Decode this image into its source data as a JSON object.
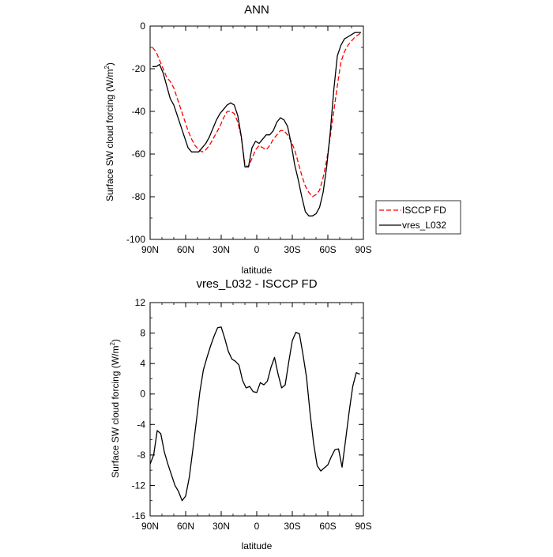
{
  "chart_data": [
    {
      "type": "line",
      "title": "ANN",
      "xlabel": "latitude",
      "ylabel_main": "Surface SW cloud forcing (W/m",
      "ylabel_sup": "2",
      "ylabel_end": ")",
      "xlim": [
        90,
        -90
      ],
      "ylim": [
        -100,
        0
      ],
      "xticks": [
        90,
        60,
        30,
        0,
        -30,
        -60,
        -90
      ],
      "xtick_labels": [
        "90N",
        "60N",
        "30N",
        "0",
        "30S",
        "60S",
        "90S"
      ],
      "yticks": [
        -100,
        -80,
        -60,
        -40,
        -20,
        0
      ],
      "ytick_labels": [
        "-100",
        "-80",
        "-60",
        "-40",
        "-20",
        "0"
      ],
      "legend_position": "right",
      "series": [
        {
          "name": "ISCCP FD",
          "color": "#ff0000",
          "dash": "dashed",
          "x": [
            88,
            85,
            82,
            79,
            76,
            73,
            70,
            67,
            64,
            61,
            58,
            55,
            52,
            49,
            46,
            43,
            40,
            37,
            34,
            31,
            28,
            25,
            22,
            19,
            16,
            13,
            10,
            7,
            4,
            1,
            -2,
            -5,
            -8,
            -11,
            -14,
            -17,
            -20,
            -23,
            -26,
            -29,
            -32,
            -35,
            -38,
            -41,
            -44,
            -47,
            -50,
            -53,
            -56,
            -59,
            -62,
            -65,
            -68,
            -71,
            -74,
            -77,
            -80,
            -83,
            -86,
            -88
          ],
          "y": [
            -10,
            -12,
            -16,
            -20,
            -24,
            -26,
            -29,
            -34,
            -39,
            -44,
            -49,
            -53,
            -56,
            -58,
            -59,
            -58,
            -56,
            -53,
            -50,
            -47,
            -43,
            -40,
            -40,
            -41,
            -45,
            -52,
            -65,
            -66,
            -62,
            -58,
            -56,
            -57,
            -58,
            -56,
            -53,
            -51,
            -49,
            -49,
            -51,
            -54,
            -58,
            -64,
            -70,
            -75,
            -78,
            -80,
            -79,
            -77,
            -71,
            -63,
            -52,
            -40,
            -28,
            -17,
            -12,
            -9,
            -7,
            -5,
            -4,
            -3
          ]
        },
        {
          "name": "vres_L032",
          "color": "#000000",
          "dash": "solid",
          "x": [
            88,
            85,
            82,
            79,
            76,
            73,
            70,
            67,
            64,
            61,
            58,
            55,
            52,
            49,
            46,
            43,
            40,
            37,
            34,
            31,
            28,
            25,
            22,
            19,
            16,
            13,
            10,
            7,
            4,
            1,
            -2,
            -5,
            -8,
            -11,
            -14,
            -17,
            -20,
            -23,
            -26,
            -29,
            -32,
            -35,
            -38,
            -41,
            -44,
            -47,
            -50,
            -53,
            -56,
            -59,
            -62,
            -65,
            -68,
            -71,
            -74,
            -77,
            -80,
            -83,
            -86,
            -88
          ],
          "y": [
            -19,
            -19,
            -18,
            -22,
            -28,
            -34,
            -37,
            -42,
            -47,
            -52,
            -57,
            -59,
            -59,
            -59,
            -57,
            -55,
            -52,
            -48,
            -44,
            -41,
            -39,
            -37,
            -36,
            -37,
            -42,
            -52,
            -66,
            -66,
            -57,
            -54,
            -55,
            -53,
            -51,
            -51,
            -49,
            -45,
            -43,
            -44,
            -47,
            -55,
            -65,
            -72,
            -80,
            -87,
            -89,
            -89,
            -88,
            -85,
            -78,
            -66,
            -50,
            -30,
            -14,
            -9,
            -6,
            -5,
            -4,
            -3,
            -3,
            -3
          ]
        }
      ]
    },
    {
      "type": "line",
      "title": "vres_L032 - ISCCP FD",
      "xlabel": "latitude",
      "ylabel_main": "Surface SW cloud forcing (W/m",
      "ylabel_sup": "2",
      "ylabel_end": ")",
      "xlim": [
        90,
        -90
      ],
      "ylim": [
        -16,
        12
      ],
      "xticks": [
        90,
        60,
        30,
        0,
        -30,
        -60,
        -90
      ],
      "xtick_labels": [
        "90N",
        "60N",
        "30N",
        "0",
        "30S",
        "60S",
        "90S"
      ],
      "yticks": [
        -16,
        -12,
        -8,
        -4,
        0,
        4,
        8,
        12
      ],
      "ytick_labels": [
        "-16",
        "-12",
        "-8",
        "-4",
        "0",
        "4",
        "8",
        "12"
      ],
      "series": [
        {
          "color": "#000000",
          "dash": "solid",
          "x": [
            90,
            87,
            84,
            81,
            78,
            75,
            72,
            69,
            66,
            63,
            60,
            57,
            54,
            51,
            48,
            45,
            42,
            39,
            36,
            33,
            30,
            27,
            24,
            21,
            18,
            15,
            12,
            9,
            6,
            3,
            0,
            -3,
            -6,
            -9,
            -12,
            -15,
            -18,
            -21,
            -24,
            -27,
            -30,
            -33,
            -36,
            -39,
            -42,
            -45,
            -48,
            -51,
            -54,
            -57,
            -60,
            -63,
            -66,
            -69,
            -72,
            -75,
            -78,
            -81,
            -84,
            -87
          ],
          "y": [
            -9.2,
            -8,
            -4.8,
            -5.2,
            -7.6,
            -9.2,
            -10.6,
            -12,
            -12.8,
            -14,
            -13.4,
            -11,
            -7.4,
            -3.6,
            0.3,
            3.2,
            4.8,
            6.3,
            7.6,
            8.7,
            8.8,
            7.3,
            5.6,
            4.6,
            4.3,
            3.8,
            1.8,
            0.8,
            1,
            0.3,
            0.2,
            1.5,
            1.2,
            1.7,
            3.5,
            4.8,
            2.6,
            0.8,
            1.2,
            4.2,
            7,
            8.1,
            7.9,
            5.2,
            2.2,
            -2.5,
            -6.5,
            -9.4,
            -10.1,
            -9.7,
            -9.3,
            -8.2,
            -7.3,
            -7.2,
            -9.6,
            -6,
            -2.3,
            1,
            2.8,
            2.6
          ]
        }
      ]
    }
  ]
}
